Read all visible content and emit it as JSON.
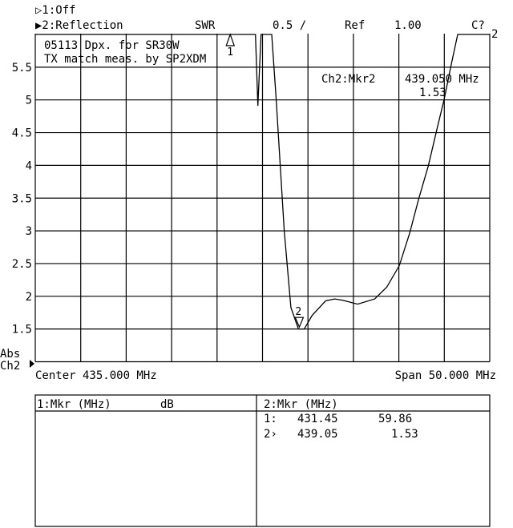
{
  "header": {
    "ch1_indicator": "▷1:Off",
    "ch2_indicator": "▶2:Reflection",
    "format": "SWR",
    "scale": "0.5 /",
    "ref_label": "Ref",
    "ref_value": "1.00",
    "cal_status": "C?",
    "channel_subscript": "2"
  },
  "annotation": {
    "line1": "05113 Dpx. for SR30W",
    "line2": "TX match meas. by SP2XDM"
  },
  "marker_readout": {
    "label": "Ch2:Mkr2",
    "freq": "439.050 MHz",
    "value": "1.53"
  },
  "left_labels": {
    "abs": "Abs",
    "ch": "Ch2"
  },
  "footer": {
    "center": "Center 435.000 MHz",
    "span": "Span 50.000 MHz"
  },
  "marker_table": {
    "left_header": "1:Mkr (MHz)",
    "left_unit": "dB",
    "right_header": "2:Mkr (MHz)",
    "rows": [
      {
        "id": "1:",
        "freq": "431.45",
        "value": "59.86"
      },
      {
        "id": "2›",
        "freq": "439.05",
        "value": "1.53"
      }
    ]
  },
  "chart_data": {
    "type": "line",
    "xlabel": "",
    "ylabel": "",
    "xlim": [
      410,
      460
    ],
    "ylim": [
      1.0,
      6.0
    ],
    "x_divisions": 10,
    "y_ticks": [
      1.5,
      2,
      2.5,
      3,
      3.5,
      4,
      4.5,
      5,
      5.5
    ],
    "y_tick_labels": [
      "1.5",
      "2",
      "2.5",
      "3",
      "3.5",
      "4",
      "4.5",
      "5",
      "5.5"
    ],
    "grid": true,
    "series": [
      {
        "x": [
          410,
          434.22,
          434.49,
          434.84,
          436.01,
          436.51,
          436.95,
          437.39,
          438.12,
          438.95,
          439.59,
          440.47,
          441.94,
          442.94,
          443.82,
          445.47,
          447.35,
          448.67,
          450.05,
          451.2,
          452.19,
          453.24,
          454.12,
          455.0,
          455.73,
          456.47,
          460
        ],
        "y": [
          6,
          6,
          4.91,
          6,
          6,
          5.0,
          4.0,
          3.0,
          1.83,
          1.5,
          1.5,
          1.71,
          1.93,
          1.96,
          1.94,
          1.88,
          1.96,
          2.14,
          2.47,
          2.97,
          3.49,
          3.99,
          4.51,
          5.02,
          5.52,
          6,
          6
        ]
      }
    ],
    "markers": [
      {
        "label": "1",
        "x": 431.45,
        "style": "delta"
      },
      {
        "label": "2",
        "x": 439.05,
        "y": 1.53,
        "style": "active"
      }
    ]
  }
}
